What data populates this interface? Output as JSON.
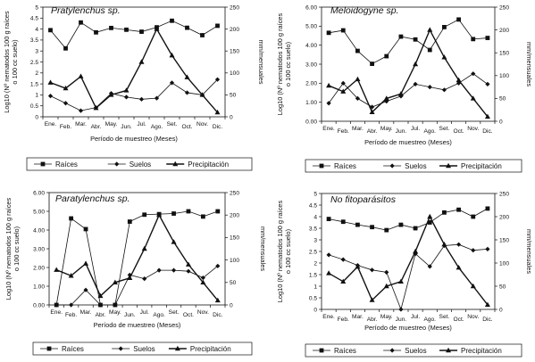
{
  "chart_data": [
    {
      "type": "line",
      "title": "Pratylenchus sp.",
      "categories": [
        "Ene.",
        "Feb.",
        "Mar.",
        "Abr.",
        "May.",
        "Jun.",
        "Jul.",
        "Ago.",
        "Set.",
        "Oct.",
        "Nov.",
        "Dic."
      ],
      "xlabel": "Período de muestreo (Meses)",
      "ylabel": "Log10 (Nº nematodos 100 g raíces o 100 cc suelo)",
      "y2label": "mm/mensuales",
      "ylim": [
        0,
        5
      ],
      "yticks": [
        "0",
        "0.5",
        "1",
        "1.5",
        "2",
        "2.5",
        "3",
        "3.5",
        "4",
        "4.5",
        "5"
      ],
      "y2lim": [
        0,
        250
      ],
      "y2ticks": [
        "0",
        "50",
        "100",
        "150",
        "200",
        "250"
      ],
      "legend_placement": "bottom",
      "series": [
        {
          "name": "Raíces",
          "axis": "left",
          "marker": "square",
          "values": [
            3.95,
            3.12,
            4.3,
            3.85,
            4.05,
            3.97,
            3.88,
            4.08,
            4.38,
            4.06,
            3.72,
            4.15
          ]
        },
        {
          "name": "Suelos",
          "axis": "left",
          "marker": "diamond",
          "values": [
            0.95,
            0.62,
            0.28,
            0.42,
            1.07,
            0.9,
            0.8,
            0.85,
            1.55,
            1.1,
            1.0,
            1.7
          ]
        },
        {
          "name": "Precipitación",
          "axis": "right",
          "marker": "triangle",
          "values": [
            78,
            65,
            92,
            20,
            50,
            60,
            125,
            200,
            140,
            90,
            50,
            10
          ]
        }
      ]
    },
    {
      "type": "line",
      "title": "Meloidogyne sp.",
      "categories": [
        "Ene.",
        "Feb.",
        "Mar.",
        "Abr.",
        "May.",
        "Jun.",
        "Jul.",
        "Ago.",
        "Set.",
        "Oct.",
        "Nov.",
        "Dic."
      ],
      "xlabel": "Período de muestreo (Meses)",
      "ylabel": "Log10 (Nº nematodos 100 g raíces o 100 cc suelo)",
      "y2label": "mm/mensuales",
      "ylim": [
        0,
        6
      ],
      "yticks": [
        "0.00",
        "1.00",
        "2.00",
        "3.00",
        "4.00",
        "5.00",
        "6.00"
      ],
      "y2lim": [
        0,
        250
      ],
      "y2ticks": [
        "0",
        "50",
        "100",
        "150",
        "200",
        "250"
      ],
      "legend_placement": "bottom",
      "series": [
        {
          "name": "Raíces",
          "axis": "left",
          "marker": "square",
          "values": [
            4.65,
            4.78,
            3.7,
            3.02,
            3.42,
            4.45,
            4.3,
            3.75,
            4.95,
            5.35,
            4.32,
            4.38
          ]
        },
        {
          "name": "Suelos",
          "axis": "left",
          "marker": "diamond",
          "values": [
            0.95,
            2.0,
            1.2,
            0.75,
            1.05,
            1.32,
            1.95,
            1.8,
            1.65,
            2.0,
            2.5,
            1.95
          ]
        },
        {
          "name": "Precipitación",
          "axis": "right",
          "marker": "triangle",
          "values": [
            78,
            65,
            92,
            20,
            50,
            60,
            125,
            200,
            140,
            90,
            50,
            10
          ]
        }
      ]
    },
    {
      "type": "line",
      "title": "Paratylenchus sp.",
      "categories": [
        "Ene.",
        "Feb.",
        "Mar.",
        "Abr.",
        "May.",
        "Jun.",
        "Jul.",
        "Ago.",
        "Set.",
        "Oct.",
        "Nov.",
        "Dic."
      ],
      "xlabel": "Período de muestreo (Meses)",
      "ylabel": "Log10 (Nº nematodos 100 g raíces o 100 cc suelo)",
      "y2label": "mm/mensuales",
      "ylim": [
        0,
        6
      ],
      "yticks": [
        "0.00",
        "1.00",
        "2.00",
        "3.00",
        "4.00",
        "5.00",
        "6.00"
      ],
      "y2lim": [
        0,
        250
      ],
      "y2ticks": [
        "0",
        "50",
        "100",
        "150",
        "200",
        "250"
      ],
      "legend_placement": "bottom",
      "series": [
        {
          "name": "Raíces",
          "axis": "left",
          "marker": "square",
          "values": [
            0.0,
            4.62,
            4.05,
            0.0,
            0.0,
            4.45,
            4.82,
            4.85,
            4.88,
            5.0,
            4.72,
            5.0
          ]
        },
        {
          "name": "Suelos",
          "axis": "left",
          "marker": "diamond",
          "values": [
            0.0,
            0.0,
            0.8,
            0.0,
            0.0,
            1.6,
            1.4,
            1.85,
            1.85,
            1.8,
            1.45,
            2.08
          ]
        },
        {
          "name": "Precipitación",
          "axis": "right",
          "marker": "triangle",
          "values": [
            78,
            65,
            92,
            20,
            50,
            60,
            125,
            200,
            140,
            90,
            50,
            10
          ]
        }
      ]
    },
    {
      "type": "line",
      "title": "No fitoparásitos",
      "categories": [
        "Ene.",
        "Feb.",
        "Mar.",
        "Abr.",
        "May.",
        "Jun.",
        "Jul.",
        "Ago.",
        "Set.",
        "Oct.",
        "Nov.",
        "Dic."
      ],
      "xlabel": "Período de muestreo (Meses)",
      "ylabel": "Log10 (Nº nematodos 100 g raíces o 100 cc suelo)",
      "y2label": "mm/mensuales",
      "ylim": [
        0,
        5
      ],
      "yticks": [
        "0",
        "0.5",
        "1",
        "1.5",
        "2",
        "2.5",
        "3",
        "3.5",
        "4",
        "4.5",
        "5"
      ],
      "y2lim": [
        0,
        250
      ],
      "y2ticks": [
        "0",
        "50",
        "100",
        "150",
        "200",
        "250"
      ],
      "legend_placement": "bottom",
      "series": [
        {
          "name": "Raíces",
          "axis": "left",
          "marker": "square",
          "values": [
            3.9,
            3.78,
            3.65,
            3.55,
            3.42,
            3.65,
            3.5,
            3.75,
            4.18,
            4.3,
            4.0,
            4.35
          ]
        },
        {
          "name": "Suelos",
          "axis": "left",
          "marker": "diamond",
          "values": [
            2.35,
            2.15,
            1.9,
            1.7,
            1.6,
            0.0,
            2.4,
            1.85,
            2.75,
            2.8,
            2.55,
            2.6
          ]
        },
        {
          "name": "Precipitación",
          "axis": "right",
          "marker": "triangle",
          "values": [
            78,
            60,
            92,
            20,
            50,
            60,
            125,
            200,
            140,
            90,
            50,
            10
          ]
        }
      ]
    }
  ]
}
